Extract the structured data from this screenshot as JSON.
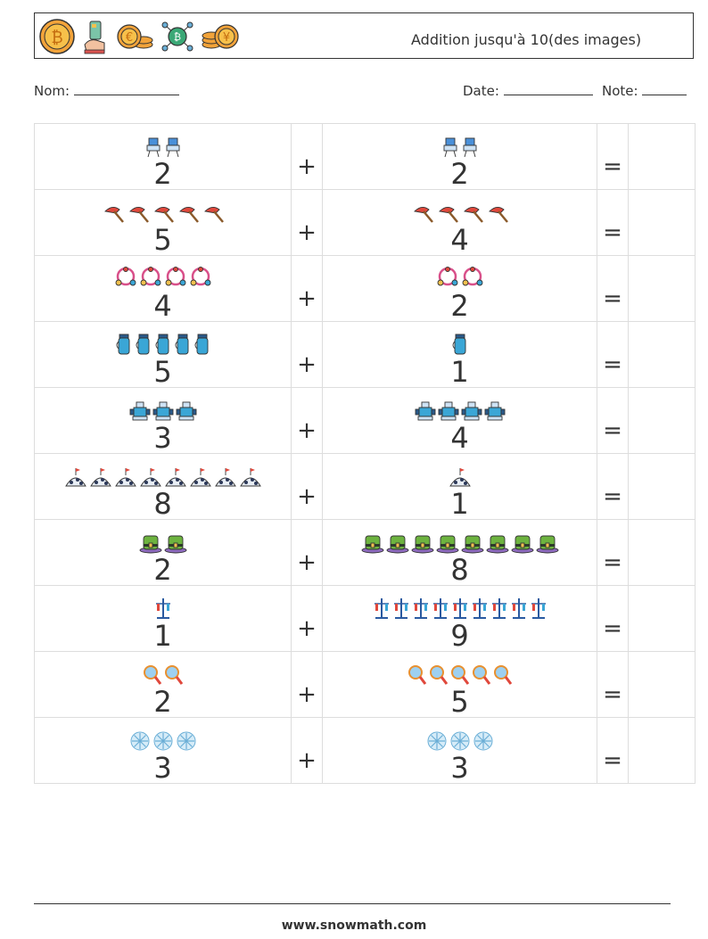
{
  "header": {
    "title": "Addition jusqu'à 10(des images)",
    "logos": [
      "bitcoin-coin-icon",
      "card-in-hand-icon",
      "euro-coins-icon",
      "bitcoin-network-icon",
      "yen-coins-icon"
    ]
  },
  "fields": {
    "name_label": "Nom:",
    "date_label": "Date:",
    "note_label": "Note:"
  },
  "operators": {
    "plus": "+",
    "equals": "="
  },
  "problems": [
    {
      "a": "2",
      "b": "2",
      "icon": "robot-icon",
      "color": "#4a90d9"
    },
    {
      "a": "5",
      "b": "4",
      "icon": "pickaxe-icon",
      "color": "#e0483c"
    },
    {
      "a": "4",
      "b": "2",
      "icon": "garland-icon",
      "color": "#d9508a"
    },
    {
      "a": "5",
      "b": "1",
      "icon": "thermos-icon",
      "color": "#3aa6d6"
    },
    {
      "a": "3",
      "b": "4",
      "icon": "robot-arm-icon",
      "color": "#3aa6d6"
    },
    {
      "a": "8",
      "b": "1",
      "icon": "igloo-flag-icon",
      "color": "#2d3a5a"
    },
    {
      "a": "2",
      "b": "8",
      "icon": "green-hat-icon",
      "color": "#6db33f"
    },
    {
      "a": "1",
      "b": "9",
      "icon": "test-tube-stand-icon",
      "color": "#2a5aa0"
    },
    {
      "a": "2",
      "b": "5",
      "icon": "magnifier-icon",
      "color": "#e89030"
    },
    {
      "a": "3",
      "b": "3",
      "icon": "snowflake-ball-icon",
      "color": "#6aaed6"
    }
  ],
  "footer": {
    "url": "www.snowmath.com"
  }
}
